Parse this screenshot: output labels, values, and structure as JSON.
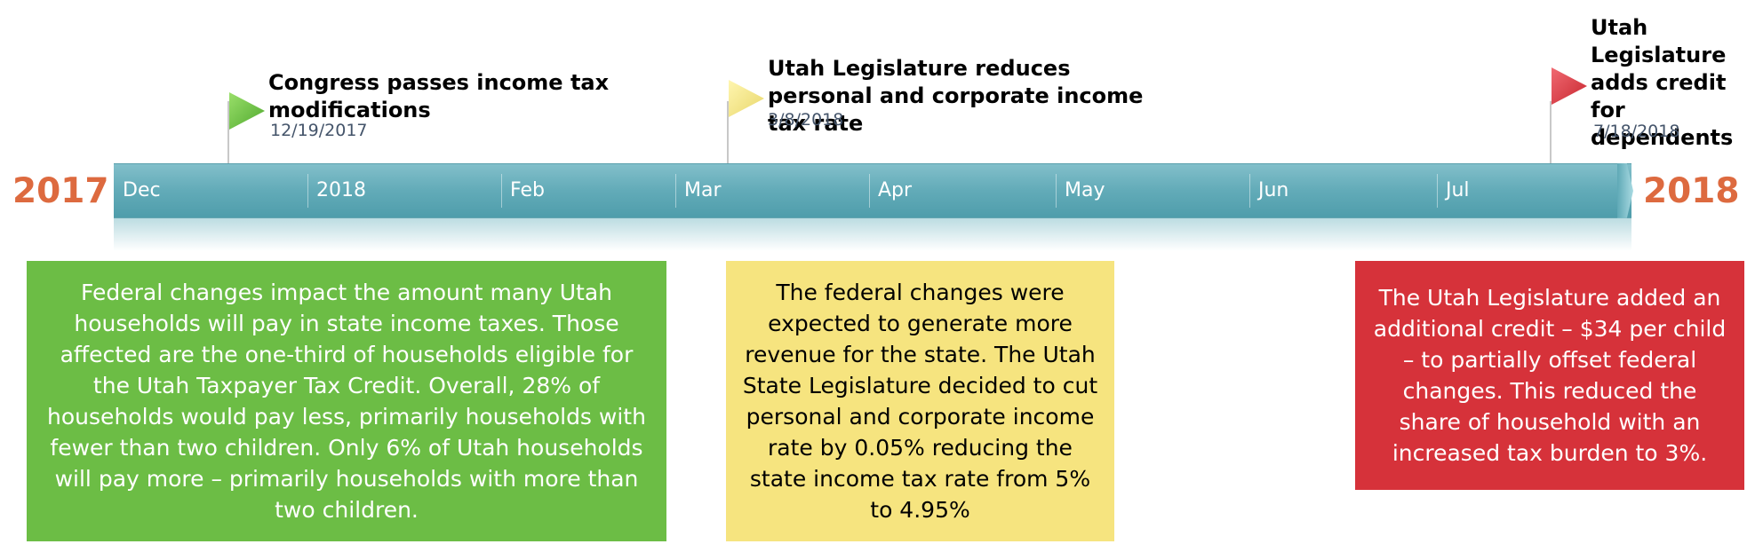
{
  "timeline": {
    "start_year": "2017",
    "end_year": "2018",
    "months": [
      "Dec",
      "2018",
      "Feb",
      "Mar",
      "Apr",
      "May",
      "Jun",
      "Jul"
    ]
  },
  "events": [
    {
      "title": "Congress passes income tax modifications",
      "date": "12/19/2017",
      "color": "#6cbd45"
    },
    {
      "title": "Utah Legislature reduces personal and corporate income tax rate",
      "date": "3/8/2018",
      "color": "#f6e47f"
    },
    {
      "title": "Utah Legislature adds credit for dependents",
      "date": "7/18/2018",
      "color": "#d6323a"
    }
  ],
  "boxes": [
    {
      "text": "Federal changes impact the amount many Utah households will pay in state income taxes. Those affected are the one-third of households eligible for the Utah Taxpayer Tax Credit. Overall, 28% of households would pay less, primarily households with fewer than two children. Only 6% of Utah households will pay more – primarily households with more than two children."
    },
    {
      "text": "The federal changes were expected to generate more revenue for the state. The Utah State Legislature decided to cut personal and corporate income rate by 0.05% reducing the state income tax rate from 5% to 4.95%"
    },
    {
      "text": "The Utah Legislature added an additional credit – $34 per child – to partially offset federal changes. This reduced the share of household with an increased tax burden to 3%."
    }
  ],
  "colors": {
    "year": "#dd6a3f",
    "bar": "#62abb8",
    "green": "#6cbd45",
    "yellow": "#f6e47f",
    "red": "#d6323a"
  }
}
